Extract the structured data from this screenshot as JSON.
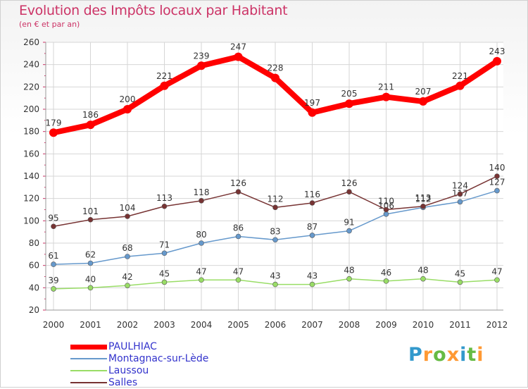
{
  "title": "Evolution des Impôts locaux par Habitant",
  "subtitle": "(en € et par an)",
  "chart_data": {
    "type": "line",
    "title": "Evolution des Impôts locaux par Habitant",
    "ylabel": "(en € et par an)",
    "xlabel": "",
    "ylim": [
      20,
      260
    ],
    "yticks": [
      20,
      40,
      60,
      80,
      100,
      120,
      140,
      160,
      180,
      200,
      220,
      240,
      260
    ],
    "categories": [
      "2000",
      "2001",
      "2002",
      "2003",
      "2004",
      "2005",
      "2006",
      "2007",
      "2008",
      "2009",
      "2010",
      "2011",
      "2012"
    ],
    "grid": true,
    "series": [
      {
        "name": "PAULHIAC",
        "color": "#ff0000",
        "values": [
          179,
          186,
          200,
          221,
          239,
          247,
          228,
          197,
          205,
          211,
          207,
          221,
          243
        ]
      },
      {
        "name": "Montagnac-sur-Lède",
        "color": "#6699cc",
        "values": [
          61,
          62,
          68,
          71,
          80,
          86,
          83,
          87,
          91,
          106,
          112,
          117,
          127
        ]
      },
      {
        "name": "Laussou",
        "color": "#99dd66",
        "values": [
          39,
          40,
          42,
          45,
          47,
          47,
          43,
          43,
          48,
          46,
          48,
          45,
          47
        ]
      },
      {
        "name": "Salles",
        "color": "#773333",
        "values": [
          95,
          101,
          104,
          113,
          118,
          126,
          112,
          116,
          126,
          110,
          113,
          124,
          140
        ]
      }
    ]
  },
  "logo": {
    "letters": [
      "P",
      "r",
      "o",
      "x",
      "i",
      "t",
      "i"
    ],
    "colors": [
      "#3399cc",
      "#ff9933",
      "#66bb44",
      "#ff9933",
      "#3399cc",
      "#66bb44",
      "#ff9933"
    ]
  }
}
